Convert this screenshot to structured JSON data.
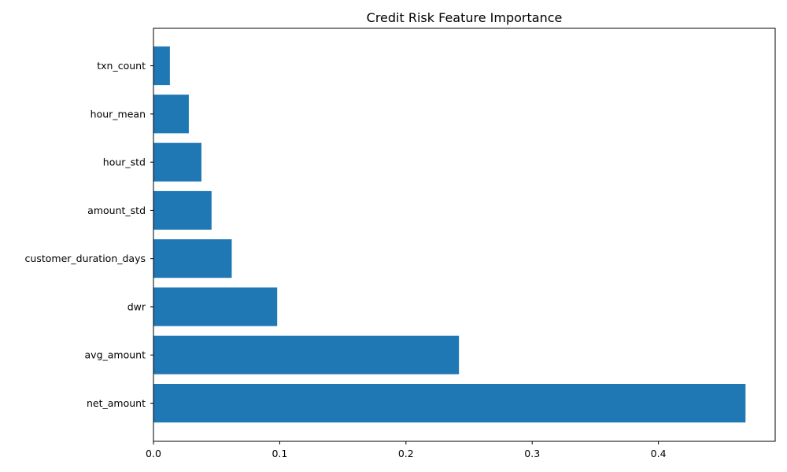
{
  "chart_data": {
    "type": "bar",
    "orientation": "horizontal",
    "title": "Credit Risk Feature Importance",
    "xlabel": "",
    "ylabel": "",
    "categories": [
      "net_amount",
      "avg_amount",
      "dwr",
      "customer_duration_days",
      "amount_std",
      "hour_std",
      "hour_mean",
      "txn_count"
    ],
    "values": [
      0.469,
      0.242,
      0.098,
      0.062,
      0.046,
      0.038,
      0.028,
      0.013
    ],
    "xlim": [
      0,
      0.4925
    ],
    "xticks": [
      0,
      0.1,
      0.2,
      0.3,
      0.4
    ],
    "xtick_labels": [
      "0.0",
      "0.1",
      "0.2",
      "0.3",
      "0.4"
    ],
    "grid": false,
    "bar_color": "#1f77b4"
  }
}
